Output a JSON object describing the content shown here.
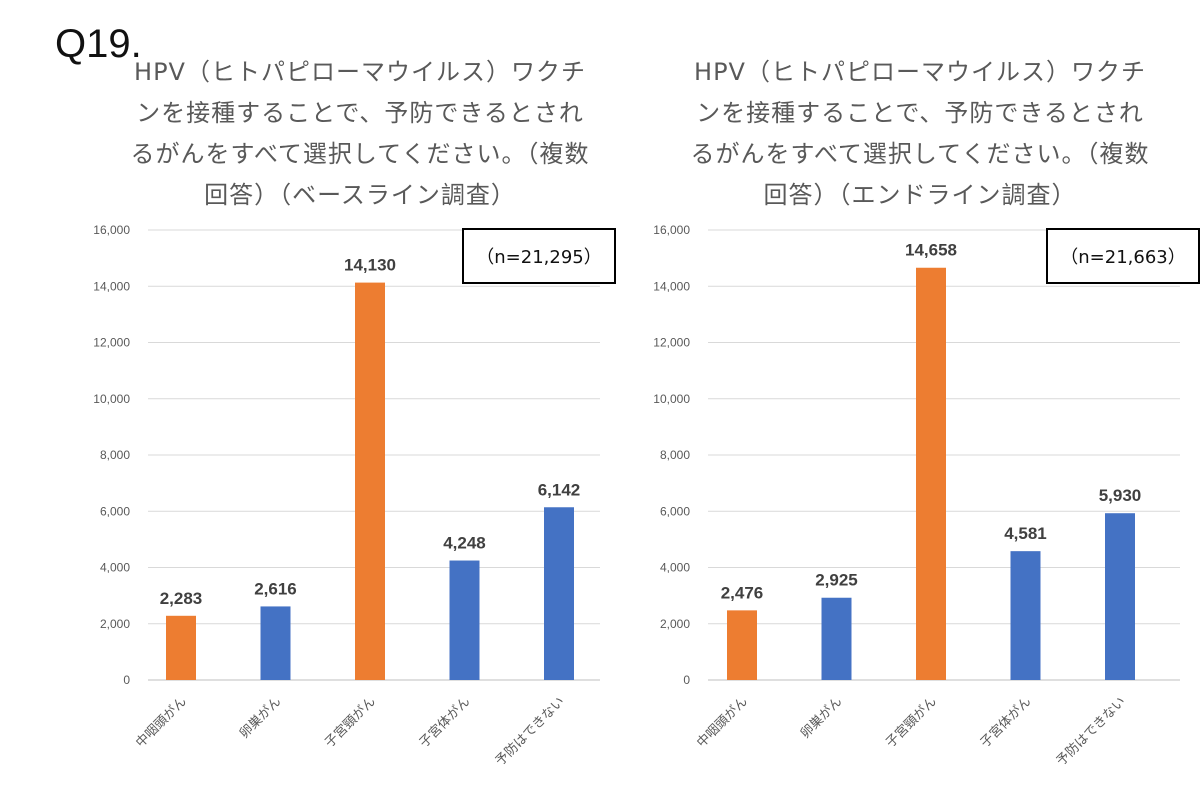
{
  "question_label": "Q19.",
  "charts": [
    {
      "title": "HPV（ヒトパピローマウイルス）ワクチンを接種することで、予防できるとされるがんをすべて選択してください。（複数回答）（ベースライン調査）",
      "n_label": "（n=21,295）"
    },
    {
      "title": "HPV（ヒトパピローマウイルス）ワクチンを接種することで、予防できるとされるがんをすべて選択してください。（複数回答）（エンドライン調査）",
      "n_label": "（n=21,663）"
    }
  ],
  "chart_data": [
    {
      "type": "bar",
      "title": "HPV（ヒトパピローマウイルス）ワクチンを接種することで、予防できるとされるがんをすべて選択してください。（複数回答）（ベースライン調査）",
      "categories": [
        "中咽頭がん",
        "卵巣がん",
        "子宮頸がん",
        "子宮体がん",
        "予防はできない"
      ],
      "values": [
        2283,
        2616,
        14130,
        4248,
        6142
      ],
      "value_labels": [
        "2,283",
        "2,616",
        "14,130",
        "4,248",
        "6,142"
      ],
      "colors": [
        "#ED7D31",
        "#4472C4",
        "#ED7D31",
        "#4472C4",
        "#4472C4"
      ],
      "yticks": [
        "0",
        "2,000",
        "4,000",
        "6,000",
        "8,000",
        "10,000",
        "12,000",
        "14,000",
        "16,000"
      ],
      "ylim": [
        0,
        16000
      ],
      "grid": true,
      "xlabel": "",
      "ylabel": ""
    },
    {
      "type": "bar",
      "title": "HPV（ヒトパピローマウイルス）ワクチンを接種することで、予防できるとされるがんをすべて選択してください。（複数回答）（エンドライン調査）",
      "categories": [
        "中咽頭がん",
        "卵巣がん",
        "子宮頸がん",
        "子宮体がん",
        "予防はできない"
      ],
      "values": [
        2476,
        2925,
        14658,
        4581,
        5930
      ],
      "value_labels": [
        "2,476",
        "2,925",
        "14,658",
        "4,581",
        "5,930"
      ],
      "colors": [
        "#ED7D31",
        "#4472C4",
        "#ED7D31",
        "#4472C4",
        "#4472C4"
      ],
      "yticks": [
        "0",
        "2,000",
        "4,000",
        "6,000",
        "8,000",
        "10,000",
        "12,000",
        "14,000",
        "16,000"
      ],
      "ylim": [
        0,
        16000
      ],
      "grid": true,
      "xlabel": "",
      "ylabel": ""
    }
  ]
}
